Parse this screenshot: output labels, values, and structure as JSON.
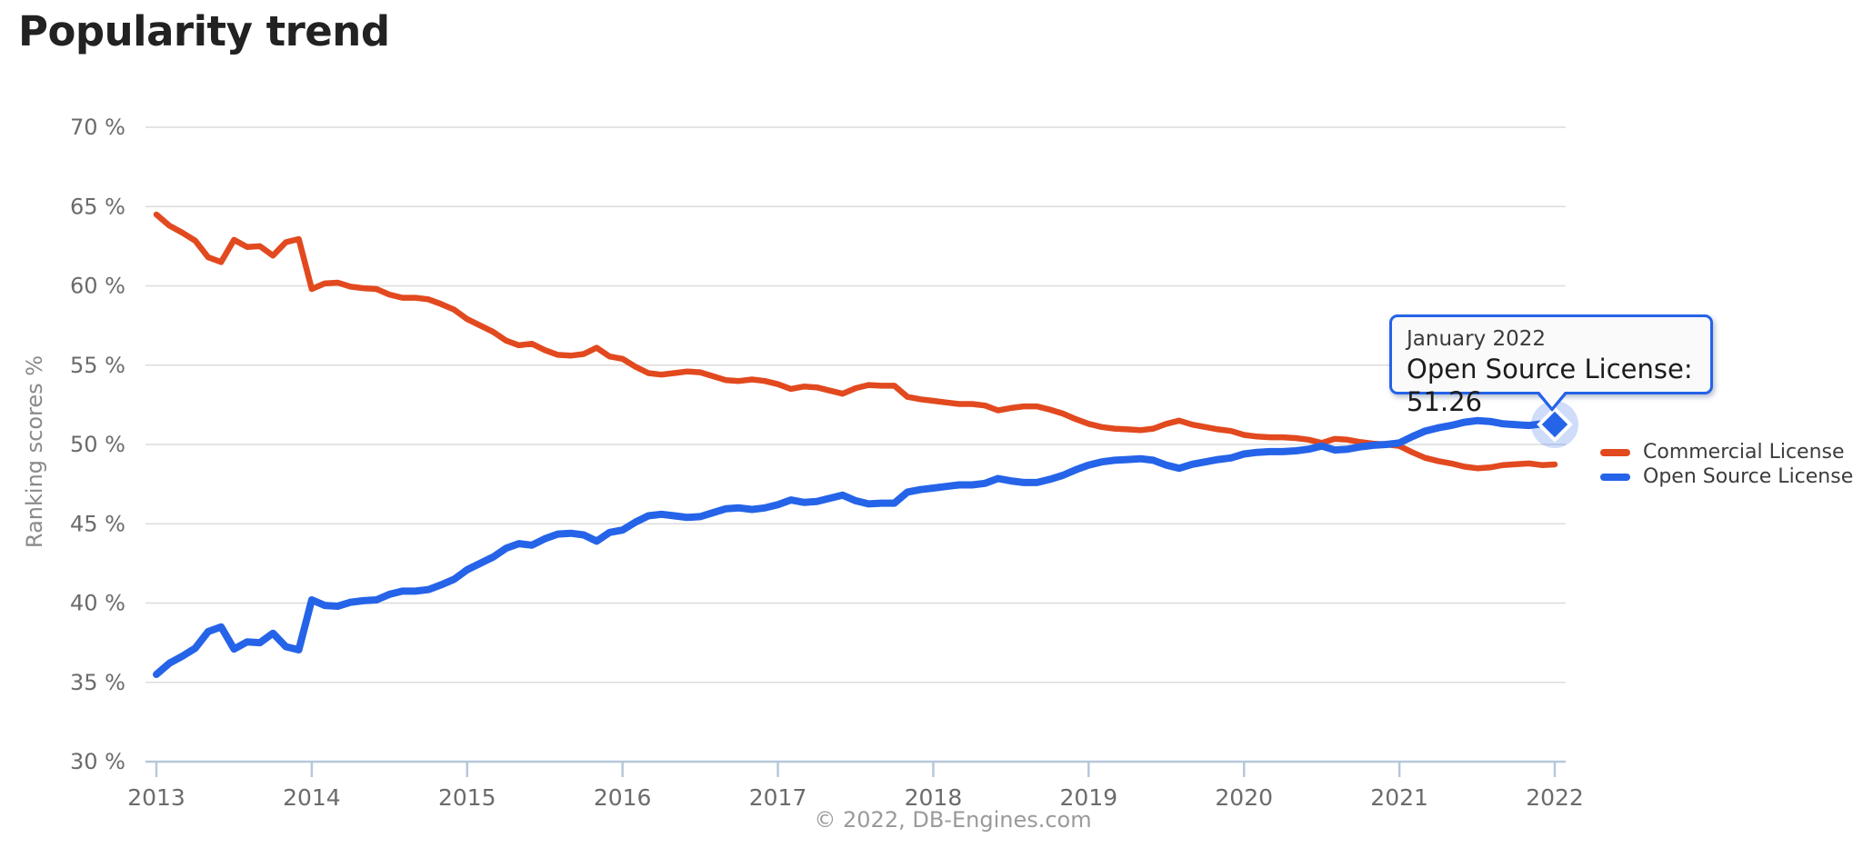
{
  "page": {
    "title": "Popularity trend",
    "footer": "© 2022, DB-Engines.com"
  },
  "tooltip": {
    "date": "January 2022",
    "series": "Open Source License",
    "value": "51.26",
    "line2": "Open Source License: 51.26"
  },
  "legend": {
    "items": [
      {
        "label": "Commercial License",
        "color": "#e2491f"
      },
      {
        "label": "Open Source License",
        "color": "#2563e8"
      }
    ]
  },
  "colors": {
    "commercial": "#e2491f",
    "open_source": "#2563e8",
    "gridline": "#dcdcdc",
    "axis_line": "#b6c8da",
    "tick_text": "#6b6b6b",
    "halo": "rgba(37,99,232,0.22)"
  },
  "chart_data": {
    "type": "line",
    "title": "Popularity trend",
    "xlabel": "",
    "ylabel": "Ranking scores %",
    "ylim": [
      30,
      70
    ],
    "grid": "horizontal",
    "legend_position": "right",
    "x_interval": "monthly",
    "x_start": "January 2013",
    "x_end": "January 2022",
    "x_tick_labels": [
      "2013",
      "2014",
      "2015",
      "2016",
      "2017",
      "2018",
      "2019",
      "2020",
      "2021",
      "2022"
    ],
    "y_tick_labels": [
      "70 %",
      "65 %",
      "60 %",
      "55 %",
      "50 %",
      "45 %",
      "40 %",
      "35 %",
      "30 %"
    ],
    "y_tick_values": [
      70,
      65,
      60,
      55,
      50,
      45,
      40,
      35,
      30
    ],
    "series": [
      {
        "name": "Commercial License",
        "color": "#e2491f",
        "values": [
          64.5,
          63.8,
          63.35,
          62.85,
          61.8,
          61.5,
          62.9,
          62.45,
          62.5,
          61.9,
          62.75,
          62.95,
          59.8,
          60.15,
          60.2,
          59.95,
          59.85,
          59.8,
          59.45,
          59.25,
          59.25,
          59.15,
          58.85,
          58.5,
          57.9,
          57.5,
          57.1,
          56.55,
          56.25,
          56.35,
          55.95,
          55.65,
          55.6,
          55.7,
          56.1,
          55.55,
          55.4,
          54.9,
          54.5,
          54.4,
          54.5,
          54.6,
          54.55,
          54.3,
          54.05,
          54.0,
          54.1,
          54.0,
          53.8,
          53.5,
          53.65,
          53.6,
          53.4,
          53.2,
          53.55,
          53.75,
          53.7,
          53.7,
          53.0,
          52.85,
          52.75,
          52.65,
          52.55,
          52.55,
          52.45,
          52.15,
          52.3,
          52.4,
          52.4,
          52.2,
          51.95,
          51.6,
          51.3,
          51.1,
          51.0,
          50.95,
          50.9,
          51.0,
          51.3,
          51.5,
          51.25,
          51.1,
          50.95,
          50.85,
          50.6,
          50.5,
          50.45,
          50.45,
          50.4,
          50.3,
          50.1,
          50.35,
          50.3,
          50.15,
          50.05,
          50.0,
          49.9,
          49.5,
          49.15,
          48.95,
          48.8,
          48.6,
          48.5,
          48.55,
          48.7,
          48.75,
          48.8,
          48.7,
          48.74
        ]
      },
      {
        "name": "Open Source License",
        "color": "#2563e8",
        "values": [
          35.5,
          36.2,
          36.65,
          37.15,
          38.2,
          38.5,
          37.1,
          37.55,
          37.5,
          38.1,
          37.25,
          37.05,
          40.2,
          39.85,
          39.8,
          40.05,
          40.15,
          40.2,
          40.55,
          40.75,
          40.75,
          40.85,
          41.15,
          41.5,
          42.1,
          42.5,
          42.9,
          43.45,
          43.75,
          43.65,
          44.05,
          44.35,
          44.4,
          44.3,
          43.9,
          44.45,
          44.6,
          45.1,
          45.5,
          45.6,
          45.5,
          45.4,
          45.45,
          45.7,
          45.95,
          46.0,
          45.9,
          46.0,
          46.2,
          46.5,
          46.35,
          46.4,
          46.6,
          46.8,
          46.45,
          46.25,
          46.3,
          46.3,
          47.0,
          47.15,
          47.25,
          47.35,
          47.45,
          47.45,
          47.55,
          47.85,
          47.7,
          47.6,
          47.6,
          47.8,
          48.05,
          48.4,
          48.7,
          48.9,
          49.0,
          49.05,
          49.1,
          49.0,
          48.7,
          48.5,
          48.75,
          48.9,
          49.05,
          49.15,
          49.4,
          49.5,
          49.55,
          49.55,
          49.6,
          49.7,
          49.9,
          49.65,
          49.7,
          49.85,
          49.95,
          50.0,
          50.1,
          50.5,
          50.85,
          51.05,
          51.2,
          51.4,
          51.5,
          51.45,
          51.3,
          51.25,
          51.2,
          51.3,
          51.26
        ]
      }
    ],
    "highlight": {
      "x": "January 2022",
      "series": "Open Source License",
      "value": 51.26
    }
  }
}
